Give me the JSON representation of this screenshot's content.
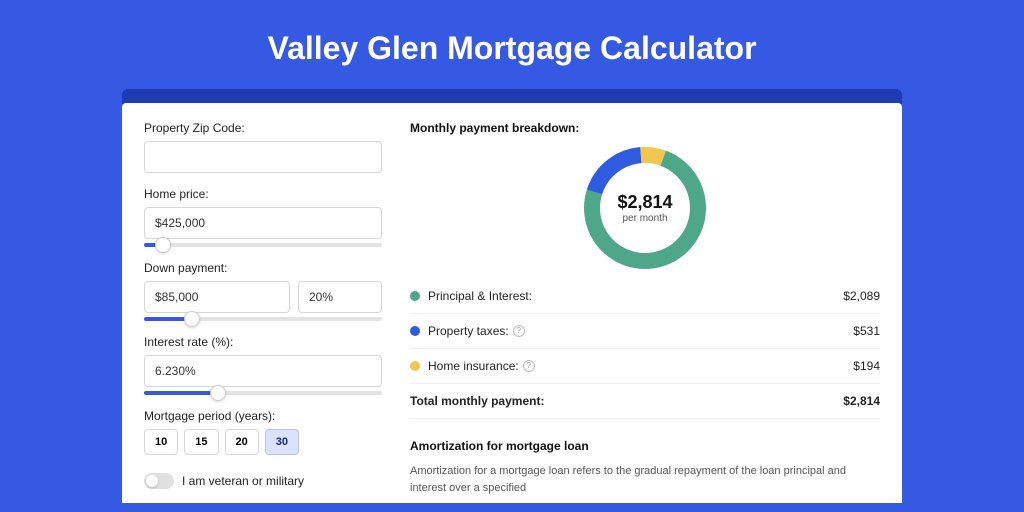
{
  "colors": {
    "page_bg": "#3659e3",
    "card_shadow_bg": "#1f3bb3",
    "card_bg": "#ffffff",
    "title_color": "#ffffff",
    "input_border": "#d6d6d6",
    "slider_fill": "#3659e3",
    "slider_rail": "#e3e3e3",
    "period_active_bg": "#dbe2fb",
    "toggle_bg": "#e0e0e0"
  },
  "header": {
    "title": "Valley Glen Mortgage Calculator"
  },
  "form": {
    "zip": {
      "label": "Property Zip Code:",
      "value": ""
    },
    "home_price": {
      "label": "Home price:",
      "value": "$425,000",
      "slider_pct": 8
    },
    "down_payment": {
      "label": "Down payment:",
      "value": "$85,000",
      "pct": "20%",
      "slider_pct": 20
    },
    "interest_rate": {
      "label": "Interest rate (%):",
      "value": "6.230%",
      "slider_pct": 31
    },
    "period": {
      "label": "Mortgage period (years):",
      "options": [
        "10",
        "15",
        "20",
        "30"
      ],
      "selected": "30"
    },
    "veteran": {
      "label": "I am veteran or military",
      "checked": false
    }
  },
  "breakdown": {
    "title": "Monthly payment breakdown:",
    "donut": {
      "amount": "$2,814",
      "sub": "per month",
      "slices": [
        {
          "key": "pi",
          "color": "#4fa78a",
          "value": 2089
        },
        {
          "key": "tax",
          "color": "#2f5be0",
          "value": 531
        },
        {
          "key": "ins",
          "color": "#f3c74f",
          "value": 194
        }
      ],
      "stroke_width": 16,
      "bg_color": "#ffffff"
    },
    "rows": [
      {
        "key": "pi",
        "dot": "#4fa78a",
        "label": "Principal & Interest:",
        "info": false,
        "amount": "$2,089"
      },
      {
        "key": "tax",
        "dot": "#2f5be0",
        "label": "Property taxes:",
        "info": true,
        "amount": "$531"
      },
      {
        "key": "ins",
        "dot": "#f3c74f",
        "label": "Home insurance:",
        "info": true,
        "amount": "$194"
      }
    ],
    "total": {
      "label": "Total monthly payment:",
      "amount": "$2,814"
    }
  },
  "amortization": {
    "title": "Amortization for mortgage loan",
    "text": "Amortization for a mortgage loan refers to the gradual repayment of the loan principal and interest over a specified"
  }
}
